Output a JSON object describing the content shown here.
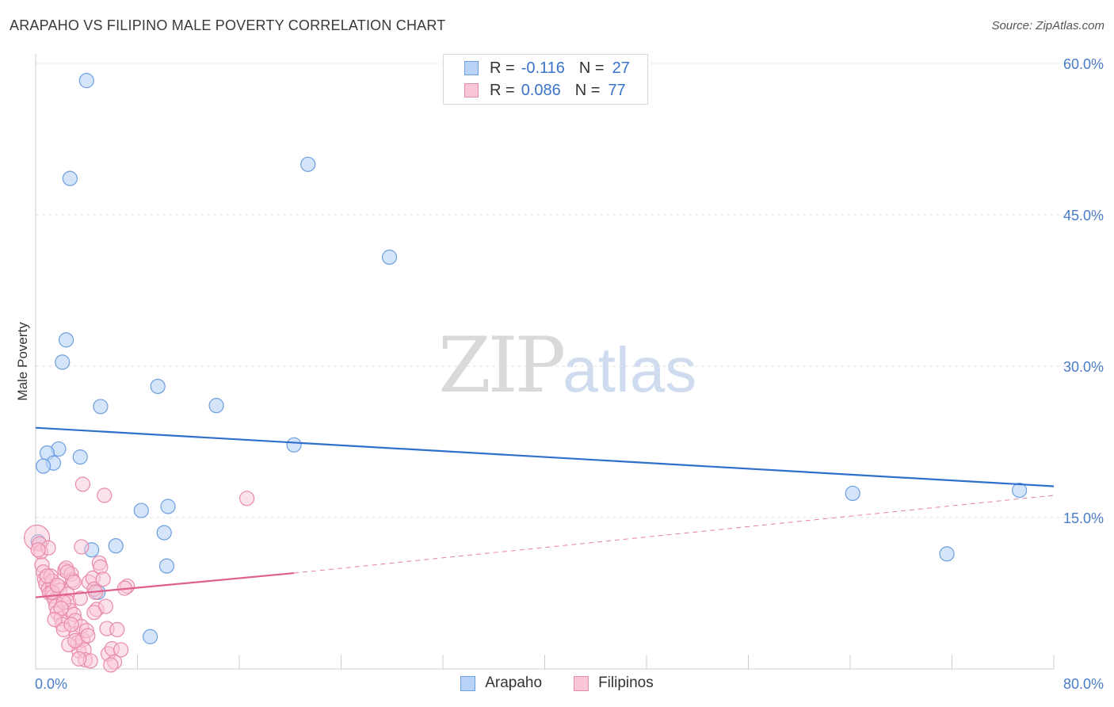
{
  "header": {
    "title": "ARAPAHO VS FILIPINO MALE POVERTY CORRELATION CHART",
    "source": "Source: ZipAtlas.com"
  },
  "watermark": {
    "zip": "ZIP",
    "atlas": "atlas"
  },
  "legend": {
    "rows": [
      {
        "r_label": "R =",
        "r_value": "-0.116",
        "n_label": "N =",
        "n_value": "27",
        "color": "#b8d3f5",
        "border": "#6d9ee0"
      },
      {
        "r_label": "R =",
        "r_value": "0.086",
        "n_label": "N =",
        "n_value": "77",
        "color": "#f9c6d6",
        "border": "#e88aa9"
      }
    ]
  },
  "bottom_legend": [
    {
      "label": "Arapaho",
      "color": "#b8d3f5",
      "border": "#6d9ee0"
    },
    {
      "label": "Filipinos",
      "color": "#f9c6d6",
      "border": "#e88aa9"
    }
  ],
  "chart_data": {
    "type": "scatter",
    "title": "ARAPAHO VS FILIPINO MALE POVERTY CORRELATION CHART",
    "xlabel": "",
    "ylabel": "Male Poverty",
    "xlim": [
      0,
      80
    ],
    "ylim": [
      0,
      60
    ],
    "x_tick_labels": [
      "0.0%",
      "80.0%"
    ],
    "y_ticks": [
      15,
      30,
      45,
      60
    ],
    "y_tick_labels": [
      "15.0%",
      "30.0%",
      "45.0%",
      "60.0%"
    ],
    "grid": true,
    "legend_position": "top-center",
    "series": [
      {
        "name": "Arapaho",
        "color": "#6d9ee0",
        "fill": "#b8d3f5",
        "trend_color": "#2e6fcc",
        "trend": {
          "x": [
            0,
            80
          ],
          "y": [
            23.9,
            18.1
          ]
        },
        "points": [
          [
            4.0,
            58.3
          ],
          [
            2.7,
            48.6
          ],
          [
            21.4,
            50.0
          ],
          [
            27.8,
            40.8
          ],
          [
            2.4,
            32.6
          ],
          [
            2.1,
            30.4
          ],
          [
            9.6,
            28.0
          ],
          [
            5.1,
            26.0
          ],
          [
            14.2,
            26.1
          ],
          [
            1.8,
            21.8
          ],
          [
            0.9,
            21.4
          ],
          [
            3.5,
            21.0
          ],
          [
            1.4,
            20.4
          ],
          [
            0.6,
            20.1
          ],
          [
            20.3,
            22.2
          ],
          [
            8.3,
            15.7
          ],
          [
            10.4,
            16.1
          ],
          [
            10.1,
            13.5
          ],
          [
            6.3,
            12.2
          ],
          [
            4.4,
            11.8
          ],
          [
            10.3,
            10.2
          ],
          [
            4.9,
            7.6
          ],
          [
            9.0,
            3.2
          ],
          [
            64.2,
            17.4
          ],
          [
            77.3,
            17.7
          ],
          [
            71.6,
            11.4
          ],
          [
            0.2,
            12.6
          ]
        ]
      },
      {
        "name": "Filipinos",
        "color": "#e88aa9",
        "fill": "#f9c6d6",
        "trend_color": "#e0608c",
        "trend": {
          "x": [
            0,
            20.3
          ],
          "y": [
            7.1,
            9.5
          ]
        },
        "trend_ext": {
          "x": [
            20.3,
            80
          ],
          "y": [
            9.5,
            17.2
          ]
        },
        "points": [
          [
            0.1,
            13.0
          ],
          [
            0.3,
            12.4
          ],
          [
            0.4,
            11.6
          ],
          [
            0.5,
            10.3
          ],
          [
            0.6,
            9.6
          ],
          [
            0.7,
            8.9
          ],
          [
            0.8,
            8.4
          ],
          [
            1.0,
            7.9
          ],
          [
            1.1,
            7.5
          ],
          [
            1.2,
            9.2
          ],
          [
            1.3,
            8.7
          ],
          [
            1.4,
            7.2
          ],
          [
            1.5,
            6.8
          ],
          [
            1.6,
            6.2
          ],
          [
            1.7,
            5.6
          ],
          [
            1.8,
            8.2
          ],
          [
            1.9,
            7.8
          ],
          [
            2.0,
            5.0
          ],
          [
            2.1,
            4.4
          ],
          [
            2.2,
            3.9
          ],
          [
            2.3,
            9.8
          ],
          [
            2.4,
            10.0
          ],
          [
            2.5,
            7.4
          ],
          [
            2.6,
            6.6
          ],
          [
            2.7,
            5.8
          ],
          [
            2.8,
            9.4
          ],
          [
            2.9,
            8.8
          ],
          [
            3.0,
            5.4
          ],
          [
            3.1,
            4.8
          ],
          [
            3.2,
            3.5
          ],
          [
            3.3,
            2.6
          ],
          [
            3.4,
            1.8
          ],
          [
            3.5,
            7.0
          ],
          [
            3.6,
            4.2
          ],
          [
            3.7,
            2.9
          ],
          [
            3.8,
            1.9
          ],
          [
            3.9,
            0.9
          ],
          [
            4.0,
            3.8
          ],
          [
            3.7,
            18.3
          ],
          [
            3.6,
            12.1
          ],
          [
            4.2,
            8.6
          ],
          [
            4.5,
            9.0
          ],
          [
            4.6,
            7.9
          ],
          [
            4.8,
            5.9
          ],
          [
            5.0,
            10.5
          ],
          [
            5.1,
            10.1
          ],
          [
            5.3,
            8.9
          ],
          [
            5.5,
            6.2
          ],
          [
            5.6,
            4.0
          ],
          [
            5.7,
            1.5
          ],
          [
            6.0,
            2.0
          ],
          [
            6.2,
            0.7
          ],
          [
            6.4,
            3.9
          ],
          [
            6.7,
            1.9
          ],
          [
            4.3,
            0.8
          ],
          [
            5.4,
            17.2
          ],
          [
            16.6,
            16.9
          ],
          [
            7.2,
            8.2
          ],
          [
            7.0,
            8.0
          ],
          [
            4.7,
            7.6
          ],
          [
            1.0,
            12.0
          ],
          [
            0.2,
            11.8
          ],
          [
            2.5,
            9.6
          ],
          [
            3.0,
            8.6
          ],
          [
            2.2,
            6.6
          ],
          [
            1.3,
            7.6
          ],
          [
            0.9,
            9.2
          ],
          [
            1.7,
            8.3
          ],
          [
            2.6,
            2.4
          ],
          [
            2.8,
            4.4
          ],
          [
            3.1,
            2.8
          ],
          [
            4.1,
            3.3
          ],
          [
            4.6,
            5.6
          ],
          [
            5.9,
            0.4
          ],
          [
            3.4,
            1.0
          ],
          [
            2.0,
            6.0
          ],
          [
            1.5,
            4.9
          ]
        ]
      }
    ]
  }
}
